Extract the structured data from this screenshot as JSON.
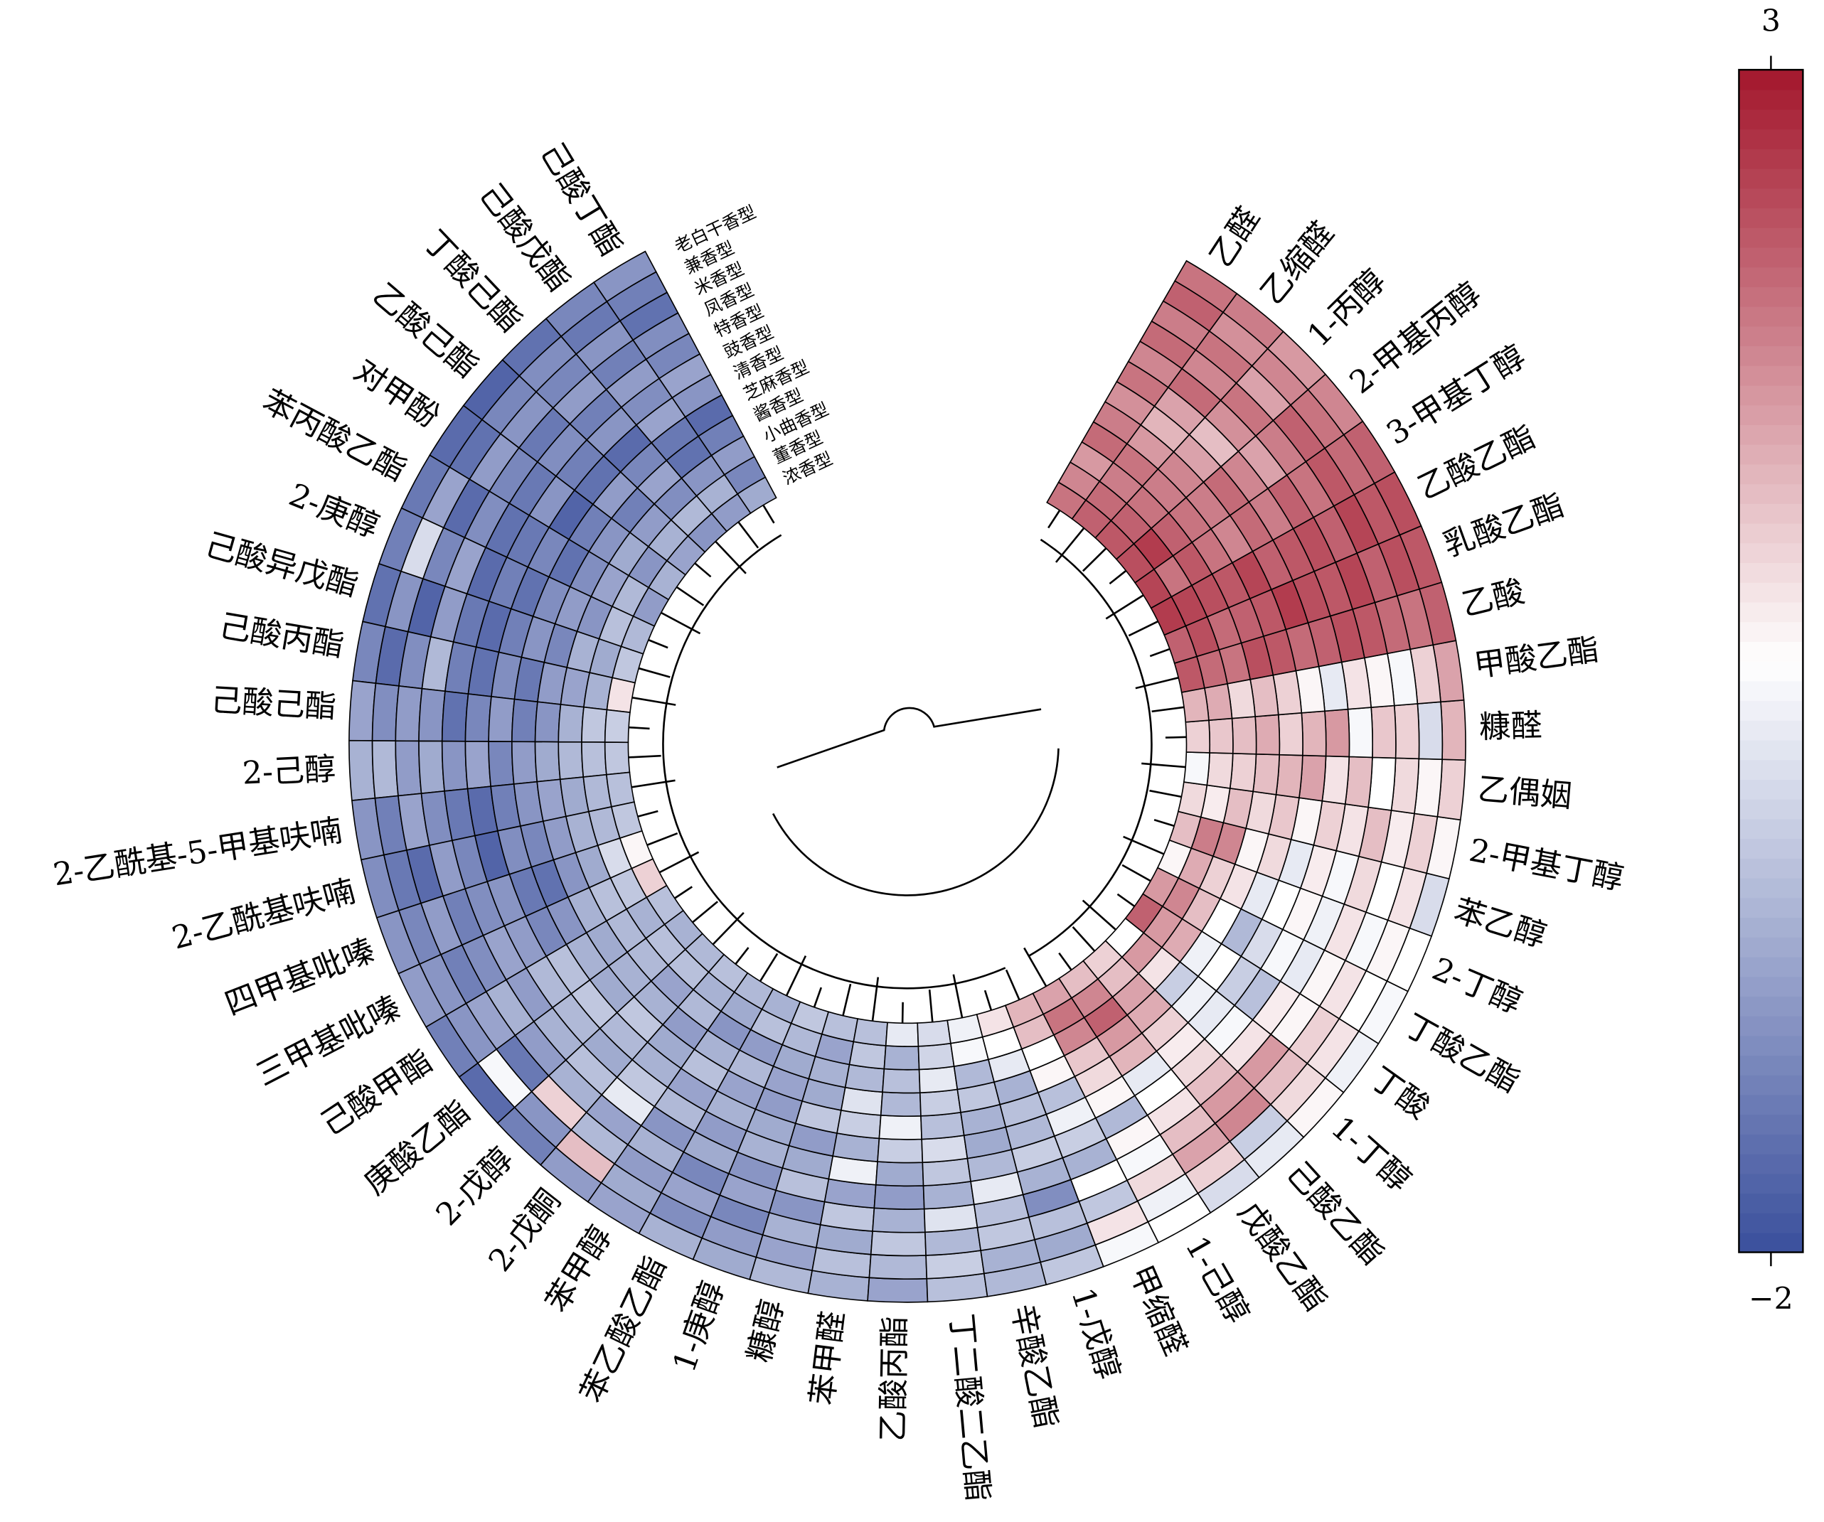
{
  "chart_data": {
    "type": "circular-heatmap",
    "categories": [
      "己酸丁酯",
      "己酸戊酯",
      "丁酸己酯",
      "乙酸己酯",
      "对甲酚",
      "苯丙酸乙酯",
      "2-庚醇",
      "己酸异戊酯",
      "己酸丙酯",
      "己酸己酯",
      "2-己醇",
      "2-乙酰基-5-甲基呋喃",
      "2-乙酰基呋喃",
      "四甲基吡嗪",
      "三甲基吡嗪",
      "己酸甲酯",
      "庚酸乙酯",
      "2-戊醇",
      "2-戊酮",
      "苯甲醇",
      "苯乙酸乙酯",
      "1-庚醇",
      "糠醇",
      "苯甲醛",
      "乙酸丙酯",
      "丁二酸二乙酯",
      "辛酸乙酯",
      "1-戊醇",
      "甲缩醛",
      "1-己醇",
      "戊酸乙酯",
      "己酸乙酯",
      "1-丁醇",
      "丁酸",
      "丁酸乙酯",
      "2-丁醇",
      "苯乙醇",
      "2-甲基丁醇",
      "乙偶姻",
      "糠醛",
      "甲酸乙酯",
      "乙酸",
      "乳酸乙酯",
      "乙酸乙酯",
      "3-甲基丁醇",
      "2-甲基丙醇",
      "1-丙醇",
      "乙缩醛",
      "乙醛"
    ],
    "rings": [
      "老白干香型",
      "兼香型",
      "米香型",
      "凤香型",
      "特香型",
      "豉香型",
      "清香型",
      "芝麻香型",
      "酱香型",
      "小曲香型",
      "董香型",
      "浓香型"
    ],
    "values": [
      [
        -1.0,
        -1.3,
        -1.5,
        -1.1,
        -1.2,
        -0.8,
        -1.0,
        -1.6,
        -1.3,
        -0.9,
        -1.2,
        -0.7
      ],
      [
        -1.2,
        -1.4,
        -1.0,
        -1.3,
        -0.9,
        -1.1,
        -0.8,
        -1.4,
        -1.5,
        -1.0,
        -0.6,
        -0.9
      ],
      [
        -1.5,
        -1.1,
        -1.2,
        -0.9,
        -1.3,
        -1.0,
        -1.6,
        -1.2,
        -0.8,
        -1.1,
        -0.5,
        -1.0
      ],
      [
        -1.7,
        -1.2,
        -1.0,
        -1.4,
        -1.1,
        -1.3,
        -1.5,
        -0.9,
        -1.3,
        -0.9,
        -0.6,
        -0.8
      ],
      [
        -1.6,
        -1.5,
        -0.9,
        -1.2,
        -1.4,
        -1.0,
        -1.7,
        -1.3,
        -1.0,
        -0.7,
        -1.0,
        -0.6
      ],
      [
        -1.4,
        -0.8,
        -1.6,
        -1.1,
        -1.5,
        -1.4,
        -1.2,
        -1.5,
        -1.1,
        -0.8,
        -0.5,
        -0.9
      ],
      [
        -1.3,
        0.0,
        -1.2,
        -0.8,
        -1.6,
        -1.3,
        -1.5,
        -1.1,
        -0.9,
        -1.0,
        -0.4,
        -0.5
      ],
      [
        -1.5,
        -1.0,
        -1.7,
        -0.9,
        -1.4,
        -1.6,
        -1.3,
        -1.0,
        -1.2,
        -0.6,
        -0.7,
        -0.3
      ],
      [
        -1.2,
        -1.6,
        -1.1,
        -0.5,
        -1.3,
        -1.5,
        -1.1,
        -1.4,
        -0.9,
        -0.8,
        -0.6,
        0.8
      ],
      [
        -0.8,
        -1.1,
        -0.9,
        -1.0,
        -1.5,
        -1.2,
        -0.9,
        -1.3,
        -1.0,
        -0.6,
        -0.3,
        -0.2
      ],
      [
        -0.6,
        -0.5,
        -0.9,
        -0.7,
        -1.0,
        -0.8,
        -1.2,
        -0.9,
        -0.7,
        -0.5,
        -0.4,
        -0.3
      ],
      [
        -1.0,
        -1.3,
        -0.8,
        -1.1,
        -1.4,
        -1.6,
        -1.3,
        -1.0,
        -0.8,
        -0.7,
        -0.5,
        -0.4
      ],
      [
        -1.1,
        -1.4,
        -1.6,
        -0.9,
        -1.2,
        -1.7,
        -1.1,
        -1.2,
        -0.9,
        -0.6,
        -0.5,
        -0.3
      ],
      [
        -1.0,
        -1.2,
        -0.9,
        -1.3,
        -1.1,
        -1.0,
        -1.4,
        -1.5,
        -1.0,
        -0.7,
        0.0,
        0.6
      ],
      [
        -0.9,
        -1.0,
        -1.3,
        -1.1,
        -0.8,
        -0.9,
        -1.2,
        -1.0,
        -0.6,
        -0.4,
        -0.3,
        1.0
      ],
      [
        -1.3,
        -1.0,
        -0.8,
        -0.6,
        -0.9,
        -0.5,
        -0.4,
        -0.6,
        -0.7,
        -0.5,
        -0.6,
        -0.4
      ],
      [
        -1.6,
        0.4,
        -1.4,
        -0.9,
        -0.6,
        -0.5,
        -0.3,
        -0.7,
        -0.6,
        -0.5,
        -0.4,
        -0.6
      ],
      [
        -1.3,
        -1.0,
        1.0,
        -0.6,
        -0.4,
        -0.7,
        -0.5,
        -0.3,
        -0.6,
        -0.8,
        -0.4,
        -0.5
      ],
      [
        -0.9,
        1.2,
        -0.5,
        -0.8,
        0.2,
        -0.3,
        -0.6,
        -0.7,
        -0.9,
        -0.5,
        -0.6,
        -0.4
      ],
      [
        -0.8,
        -0.7,
        -0.9,
        -0.6,
        -1.0,
        -0.5,
        -0.8,
        -0.4,
        -0.6,
        -1.0,
        -0.7,
        -0.5
      ],
      [
        -0.6,
        -1.1,
        -0.8,
        -1.2,
        -0.7,
        -0.9,
        -0.6,
        -0.8,
        -0.5,
        -0.9,
        -0.4,
        -0.6
      ],
      [
        -0.7,
        -0.9,
        -1.2,
        -0.8,
        -1.0,
        -0.6,
        -0.7,
        -0.9,
        -0.8,
        -0.7,
        -0.5,
        -0.3
      ],
      [
        -0.5,
        -0.8,
        -0.6,
        -1.0,
        -0.4,
        -0.7,
        -0.9,
        -0.3,
        -0.7,
        -0.6,
        -0.8,
        -0.4
      ],
      [
        -0.6,
        -0.4,
        -0.7,
        -0.3,
        -0.8,
        0.3,
        -0.6,
        -0.2,
        0.1,
        -0.5,
        -0.3,
        -0.4
      ],
      [
        -0.8,
        -0.5,
        -0.3,
        -0.6,
        -0.9,
        -0.7,
        -0.2,
        0.3,
        -0.5,
        -0.4,
        -0.6,
        0.2
      ],
      [
        -0.4,
        -0.2,
        -0.5,
        0.1,
        -0.6,
        -0.3,
        0.0,
        -0.4,
        -0.2,
        0.2,
        -0.1,
        0.0
      ],
      [
        -0.5,
        -0.6,
        -0.3,
        -0.4,
        0.2,
        -0.5,
        -0.7,
        -0.6,
        -0.3,
        -0.5,
        0.4,
        0.3
      ],
      [
        -0.3,
        -0.7,
        -0.4,
        -1.1,
        -0.6,
        -0.2,
        -0.5,
        -0.4,
        -0.6,
        0.2,
        0.5,
        0.8
      ],
      [
        0.4,
        0.8,
        -0.3,
        0.5,
        -0.6,
        -0.2,
        0.3,
        -0.4,
        0.6,
        0.5,
        1.2,
        1.3
      ],
      [
        0.5,
        0.3,
        0.9,
        0.4,
        0.6,
        -0.5,
        0.6,
        0.9,
        1.1,
        1.8,
        2.0,
        1.5
      ],
      [
        0.0,
        1.0,
        1.5,
        1.2,
        0.8,
        0.5,
        0.2,
        1.3,
        1.6,
        2.2,
        1.8,
        1.2
      ],
      [
        0.2,
        -0.2,
        1.8,
        1.6,
        1.2,
        0.9,
        0.7,
        1.0,
        1.4,
        1.5,
        1.2,
        1.0
      ],
      [
        0.6,
        0.9,
        1.2,
        1.6,
        0.8,
        0.4,
        0.2,
        0.3,
        -0.2,
        0.8,
        1.6,
        0.5
      ],
      [
        0.3,
        0.8,
        1.0,
        0.6,
        0.7,
        -0.4,
        -0.2,
        0.5,
        0.3,
        1.4,
        1.6,
        2.2
      ],
      [
        0.4,
        0.5,
        0.8,
        0.6,
        0.2,
        0.4,
        0.0,
        -0.5,
        0.5,
        1.2,
        1.8,
        1.6
      ],
      [
        0.5,
        0.6,
        0.4,
        0.8,
        0.3,
        0.6,
        0.5,
        0.2,
        0.8,
        1.0,
        1.4,
        0.6
      ],
      [
        0.0,
        0.8,
        0.5,
        0.9,
        0.4,
        0.7,
        0.2,
        0.9,
        0.6,
        1.8,
        1.9,
        1.2
      ],
      [
        0.6,
        1.0,
        0.7,
        1.2,
        0.8,
        1.0,
        0.6,
        1.1,
        0.9,
        1.2,
        0.7,
        0.9
      ],
      [
        1.0,
        0.6,
        0.9,
        0.5,
        1.2,
        0.8,
        1.5,
        1.3,
        1.2,
        1.0,
        0.9,
        0.4
      ],
      [
        1.3,
        0.0,
        1.0,
        1.1,
        0.4,
        1.6,
        1.3,
        1.0,
        1.4,
        1.2,
        1.1,
        1.0
      ],
      [
        1.5,
        1.0,
        0.4,
        0.6,
        0.8,
        0.2,
        0.6,
        1.0,
        1.2,
        0.9,
        1.4,
        1.3
      ],
      [
        2.2,
        2.0,
        2.1,
        2.3,
        2.4,
        2.2,
        2.1,
        2.3,
        2.4,
        2.0,
        2.1,
        2.3
      ],
      [
        2.3,
        2.4,
        2.2,
        2.5,
        2.3,
        2.4,
        2.6,
        2.3,
        2.2,
        2.1,
        2.4,
        2.2
      ],
      [
        2.4,
        2.3,
        2.5,
        2.2,
        2.4,
        2.3,
        2.2,
        2.5,
        2.3,
        2.4,
        2.5,
        2.6
      ],
      [
        2.2,
        2.1,
        2.3,
        2.0,
        2.2,
        1.9,
        2.1,
        1.8,
        2.0,
        2.3,
        2.0,
        2.5
      ],
      [
        1.8,
        2.0,
        2.2,
        1.9,
        1.5,
        1.8,
        2.1,
        1.9,
        2.0,
        2.2,
        2.6,
        2.4
      ],
      [
        1.6,
        1.8,
        1.5,
        2.0,
        1.7,
        1.2,
        1.5,
        1.8,
        1.9,
        2.0,
        2.2,
        2.3
      ],
      [
        1.9,
        1.7,
        2.0,
        1.8,
        2.1,
        1.5,
        1.3,
        1.6,
        2.0,
        1.9,
        2.1,
        2.2
      ],
      [
        2.0,
        2.2,
        1.9,
        2.1,
        1.8,
        2.0,
        1.7,
        1.9,
        2.1,
        1.6,
        1.8,
        2.0
      ]
    ],
    "colors": [
      "#3a4f9c",
      "#ffffff",
      "#a3172c"
    ],
    "zlim": [
      -2,
      3
    ],
    "zticks": [
      3,
      {
        "value": -2,
        "label": "−2"
      }
    ]
  }
}
